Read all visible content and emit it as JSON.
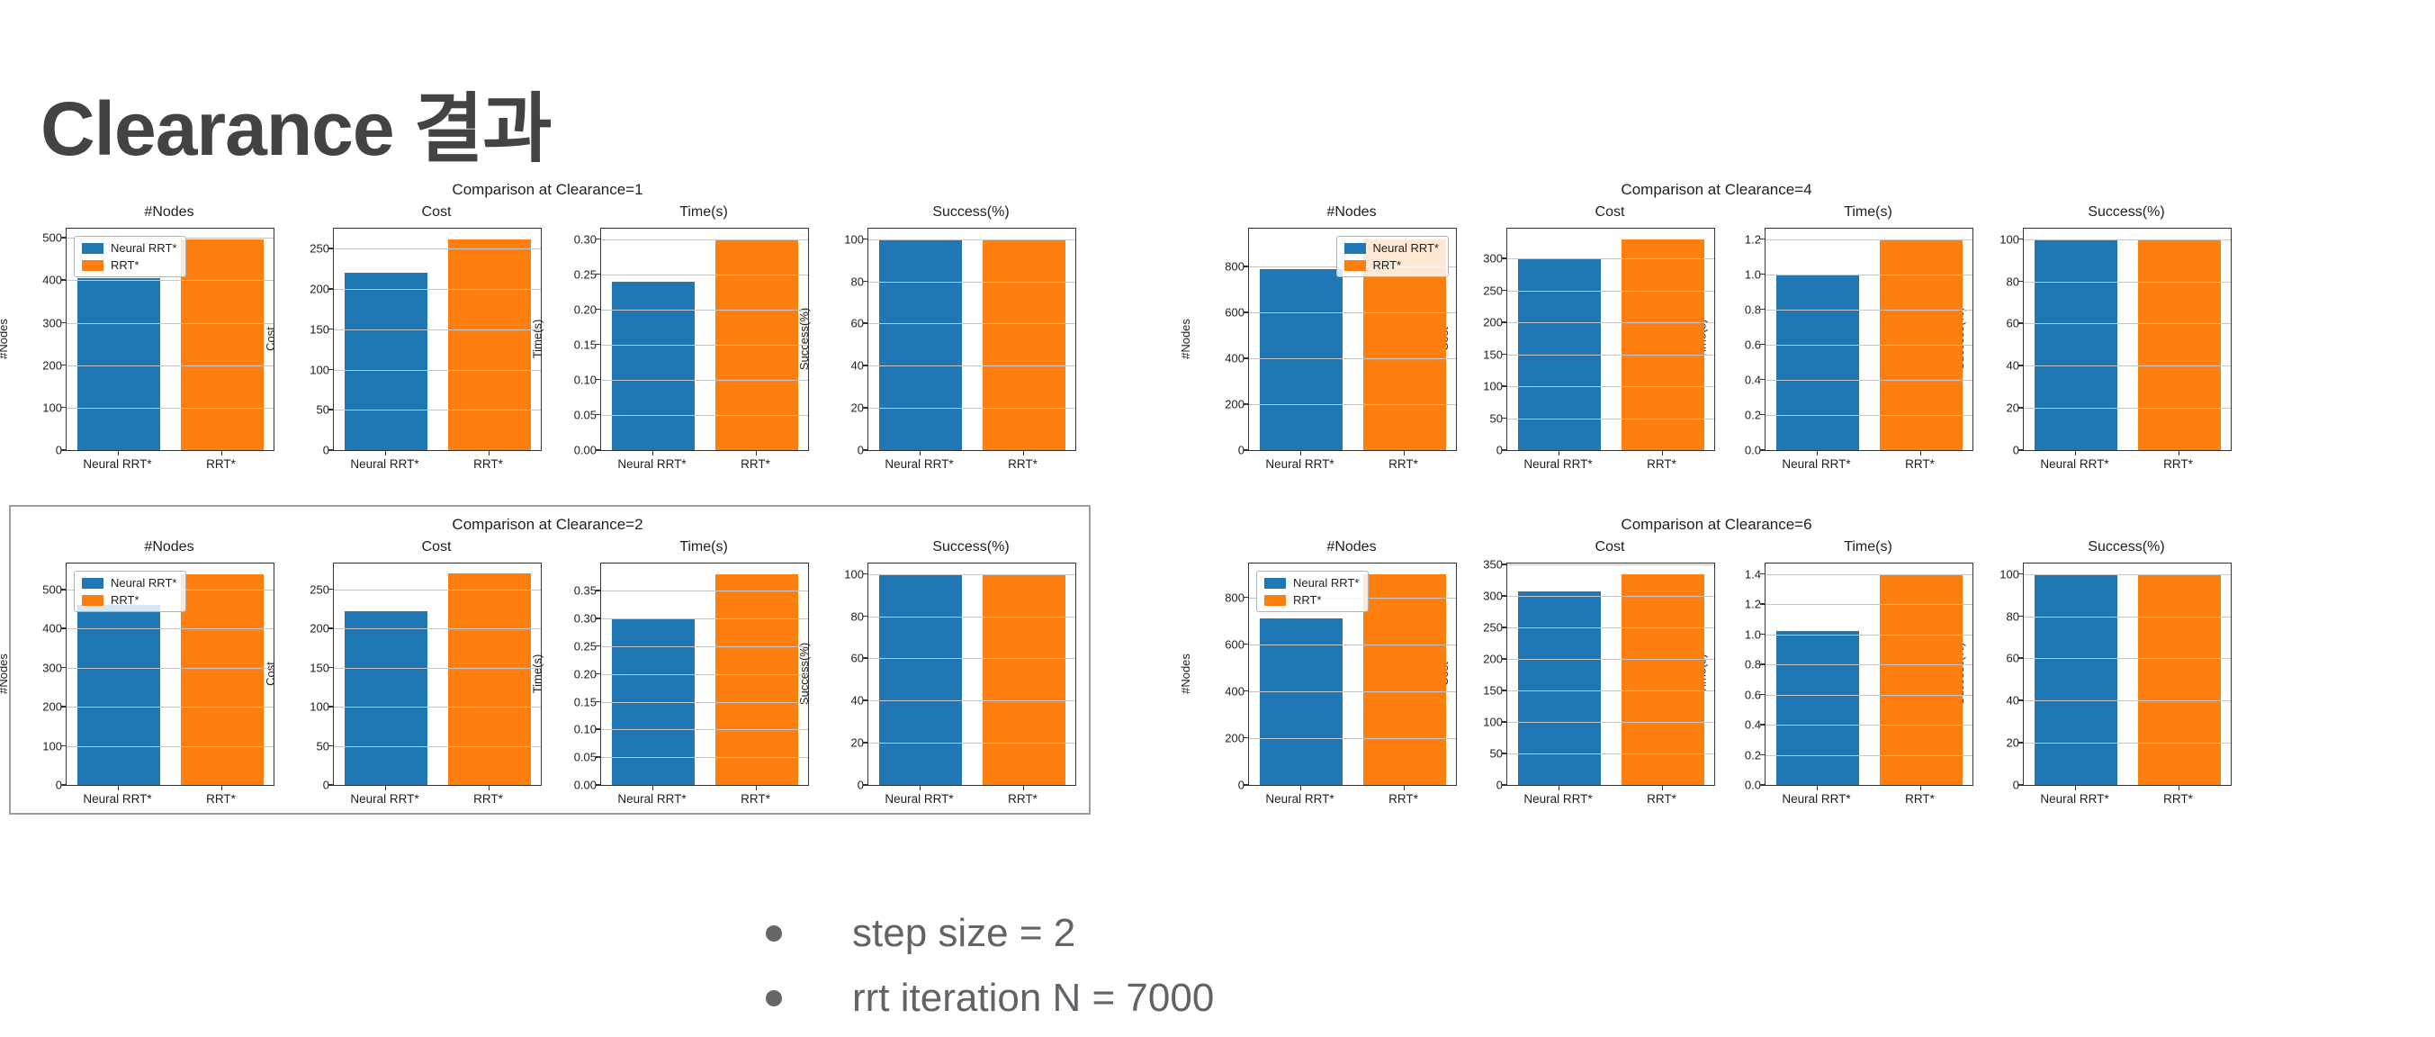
{
  "slide": {
    "title": "Clearance 결과",
    "bullets": [
      "step size = 2",
      "rrt iteration N = 7000"
    ]
  },
  "legend": {
    "series": [
      "Neural RRT*",
      "RRT*"
    ],
    "colors": [
      "#1f77b4",
      "#ff7f0e"
    ]
  },
  "chart_data": [
    {
      "type": "bar",
      "title": "Comparison at Clearance=1",
      "categories": [
        "Neural RRT*",
        "RRT*"
      ],
      "grid": true,
      "subplots": [
        {
          "title": "#Nodes",
          "ylabel": "#Nodes",
          "values": [
            405,
            497
          ],
          "ylim": [
            0,
            522
          ],
          "legend": "upper-left",
          "yticks": [
            [
              0,
              "0"
            ],
            [
              100,
              "100"
            ],
            [
              200,
              "200"
            ],
            [
              300,
              "300"
            ],
            [
              400,
              "400"
            ],
            [
              500,
              "500"
            ]
          ]
        },
        {
          "title": "Cost",
          "ylabel": "Cost",
          "values": [
            220,
            262
          ],
          "ylim": [
            0,
            275
          ],
          "legend": null,
          "yticks": [
            [
              0,
              "0"
            ],
            [
              50,
              "50"
            ],
            [
              100,
              "100"
            ],
            [
              150,
              "150"
            ],
            [
              200,
              "200"
            ],
            [
              250,
              "250"
            ]
          ]
        },
        {
          "title": "Time(s)",
          "ylabel": "Time(s)",
          "values": [
            0.24,
            0.3
          ],
          "ylim": [
            0,
            0.315
          ],
          "legend": null,
          "yticks": [
            [
              0,
              "0.00"
            ],
            [
              0.05,
              "0.05"
            ],
            [
              0.1,
              "0.10"
            ],
            [
              0.15,
              "0.15"
            ],
            [
              0.2,
              "0.20"
            ],
            [
              0.25,
              "0.25"
            ],
            [
              0.3,
              "0.30"
            ]
          ]
        },
        {
          "title": "Success(%)",
          "ylabel": "Success(%)",
          "values": [
            100,
            100
          ],
          "ylim": [
            0,
            105
          ],
          "legend": null,
          "yticks": [
            [
              0,
              "0"
            ],
            [
              20,
              "20"
            ],
            [
              40,
              "40"
            ],
            [
              60,
              "60"
            ],
            [
              80,
              "80"
            ],
            [
              100,
              "100"
            ]
          ]
        }
      ]
    },
    {
      "type": "bar",
      "title": "Comparison at Clearance=2",
      "categories": [
        "Neural RRT*",
        "RRT*"
      ],
      "grid": true,
      "subplots": [
        {
          "title": "#Nodes",
          "ylabel": "#Nodes",
          "values": [
            460,
            540
          ],
          "ylim": [
            0,
            567
          ],
          "legend": "upper-left",
          "yticks": [
            [
              0,
              "0"
            ],
            [
              100,
              "100"
            ],
            [
              200,
              "200"
            ],
            [
              300,
              "300"
            ],
            [
              400,
              "400"
            ],
            [
              500,
              "500"
            ]
          ]
        },
        {
          "title": "Cost",
          "ylabel": "Cost",
          "values": [
            222,
            270
          ],
          "ylim": [
            0,
            283
          ],
          "legend": null,
          "yticks": [
            [
              0,
              "0"
            ],
            [
              50,
              "50"
            ],
            [
              100,
              "100"
            ],
            [
              150,
              "150"
            ],
            [
              200,
              "200"
            ],
            [
              250,
              "250"
            ]
          ]
        },
        {
          "title": "Time(s)",
          "ylabel": "Time(s)",
          "values": [
            0.3,
            0.38
          ],
          "ylim": [
            0,
            0.399
          ],
          "legend": null,
          "yticks": [
            [
              0,
              "0.00"
            ],
            [
              0.05,
              "0.05"
            ],
            [
              0.1,
              "0.10"
            ],
            [
              0.15,
              "0.15"
            ],
            [
              0.2,
              "0.20"
            ],
            [
              0.25,
              "0.25"
            ],
            [
              0.3,
              "0.30"
            ],
            [
              0.35,
              "0.35"
            ]
          ]
        },
        {
          "title": "Success(%)",
          "ylabel": "Success(%)",
          "values": [
            100,
            100
          ],
          "ylim": [
            0,
            105
          ],
          "legend": null,
          "yticks": [
            [
              0,
              "0"
            ],
            [
              20,
              "20"
            ],
            [
              40,
              "40"
            ],
            [
              60,
              "60"
            ],
            [
              80,
              "80"
            ],
            [
              100,
              "100"
            ]
          ]
        }
      ]
    },
    {
      "type": "bar",
      "title": "Comparison at Clearance=4",
      "categories": [
        "Neural RRT*",
        "RRT*"
      ],
      "grid": true,
      "subplots": [
        {
          "title": "#Nodes",
          "ylabel": "#Nodes",
          "values": [
            790,
            920
          ],
          "ylim": [
            0,
            966
          ],
          "legend": "upper-right",
          "yticks": [
            [
              0,
              "0"
            ],
            [
              200,
              "200"
            ],
            [
              400,
              "400"
            ],
            [
              600,
              "600"
            ],
            [
              800,
              "800"
            ]
          ]
        },
        {
          "title": "Cost",
          "ylabel": "Cost",
          "values": [
            300,
            330
          ],
          "ylim": [
            0,
            347
          ],
          "legend": null,
          "yticks": [
            [
              0,
              "0"
            ],
            [
              50,
              "50"
            ],
            [
              100,
              "100"
            ],
            [
              150,
              "150"
            ],
            [
              200,
              "200"
            ],
            [
              250,
              "250"
            ],
            [
              300,
              "300"
            ]
          ]
        },
        {
          "title": "Time(s)",
          "ylabel": "Time(s)",
          "values": [
            1.0,
            1.2
          ],
          "ylim": [
            0,
            1.26
          ],
          "legend": null,
          "yticks": [
            [
              0,
              "0.0"
            ],
            [
              0.2,
              "0.2"
            ],
            [
              0.4,
              "0.4"
            ],
            [
              0.6,
              "0.6"
            ],
            [
              0.8,
              "0.8"
            ],
            [
              1.0,
              "1.0"
            ],
            [
              1.2,
              "1.2"
            ]
          ]
        },
        {
          "title": "Success(%)",
          "ylabel": "Success(%)",
          "values": [
            100,
            100
          ],
          "ylim": [
            0,
            105
          ],
          "legend": null,
          "yticks": [
            [
              0,
              "0"
            ],
            [
              20,
              "20"
            ],
            [
              40,
              "40"
            ],
            [
              60,
              "60"
            ],
            [
              80,
              "80"
            ],
            [
              100,
              "100"
            ]
          ]
        }
      ]
    },
    {
      "type": "bar",
      "title": "Comparison at Clearance=6",
      "categories": [
        "Neural RRT*",
        "RRT*"
      ],
      "grid": true,
      "subplots": [
        {
          "title": "#Nodes",
          "ylabel": "#Nodes",
          "values": [
            710,
            900
          ],
          "ylim": [
            0,
            945
          ],
          "legend": "upper-left",
          "yticks": [
            [
              0,
              "0"
            ],
            [
              200,
              "200"
            ],
            [
              400,
              "400"
            ],
            [
              600,
              "600"
            ],
            [
              800,
              "800"
            ]
          ]
        },
        {
          "title": "Cost",
          "ylabel": "Cost",
          "values": [
            307,
            335
          ],
          "ylim": [
            0,
            352
          ],
          "legend": null,
          "yticks": [
            [
              0,
              "0"
            ],
            [
              50,
              "50"
            ],
            [
              100,
              "100"
            ],
            [
              150,
              "150"
            ],
            [
              200,
              "200"
            ],
            [
              250,
              "250"
            ],
            [
              300,
              "300"
            ],
            [
              350,
              "350"
            ]
          ]
        },
        {
          "title": "Time(s)",
          "ylabel": "Time(s)",
          "values": [
            1.02,
            1.4
          ],
          "ylim": [
            0,
            1.47
          ],
          "legend": null,
          "yticks": [
            [
              0,
              "0.0"
            ],
            [
              0.2,
              "0.2"
            ],
            [
              0.4,
              "0.4"
            ],
            [
              0.6,
              "0.6"
            ],
            [
              0.8,
              "0.8"
            ],
            [
              1.0,
              "1.0"
            ],
            [
              1.2,
              "1.2"
            ],
            [
              1.4,
              "1.4"
            ]
          ]
        },
        {
          "title": "Success(%)",
          "ylabel": "Success(%)",
          "values": [
            100,
            100
          ],
          "ylim": [
            0,
            105
          ],
          "legend": null,
          "yticks": [
            [
              0,
              "0"
            ],
            [
              20,
              "20"
            ],
            [
              40,
              "40"
            ],
            [
              60,
              "60"
            ],
            [
              80,
              "80"
            ],
            [
              100,
              "100"
            ]
          ]
        }
      ]
    }
  ]
}
